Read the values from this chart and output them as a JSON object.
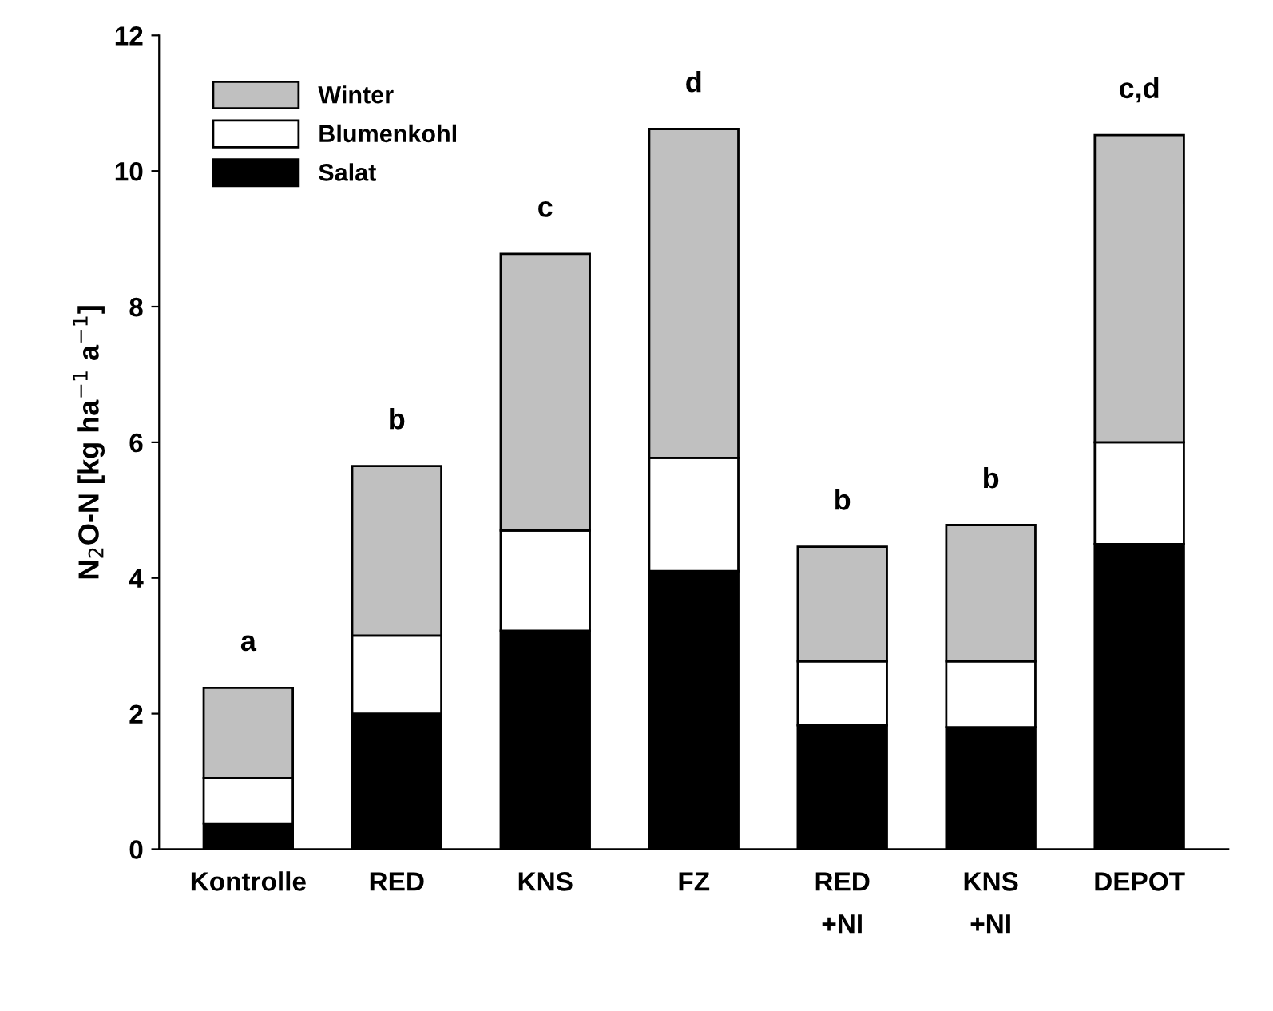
{
  "chart_data": {
    "type": "bar",
    "stacked": true,
    "ylabel": "N$_{2}$O-N [kg ha$^{−1}$ a$^{−1}$]",
    "categories": [
      "Kontrolle",
      "RED",
      "KNS",
      "FZ",
      "RED\n+NI",
      "KNS\n+NI",
      "DEPOT"
    ],
    "series": [
      {
        "name": "Salat",
        "color": "#000000",
        "values": [
          0.38,
          2.0,
          3.22,
          4.1,
          1.83,
          1.8,
          4.5
        ]
      },
      {
        "name": "Blumenkohl",
        "color": "#ffffff",
        "values": [
          0.67,
          1.15,
          1.48,
          1.67,
          0.94,
          0.97,
          1.5
        ]
      },
      {
        "name": "Winter",
        "color": "#c0c0c0",
        "values": [
          1.33,
          2.5,
          4.08,
          4.85,
          1.69,
          2.01,
          4.53
        ]
      }
    ],
    "annotations": [
      {
        "text": "a",
        "x": "Kontrolle",
        "y": 2.38
      },
      {
        "text": "b",
        "x": "RED",
        "y": 5.65
      },
      {
        "text": "c",
        "x": "KNS",
        "y": 8.78
      },
      {
        "text": "d",
        "x": "FZ",
        "y": 10.62
      },
      {
        "text": "b",
        "x": "RED\n+NI",
        "y": 4.46
      },
      {
        "text": "b",
        "x": "KNS\n+NI",
        "y": 4.78
      },
      {
        "text": "c,d",
        "x": "DEPOT",
        "y": 10.53
      }
    ],
    "ylim": [
      0,
      12
    ],
    "yticks": [
      0,
      2,
      4,
      6,
      8,
      10,
      12
    ],
    "grid": false,
    "legend": "top left"
  }
}
